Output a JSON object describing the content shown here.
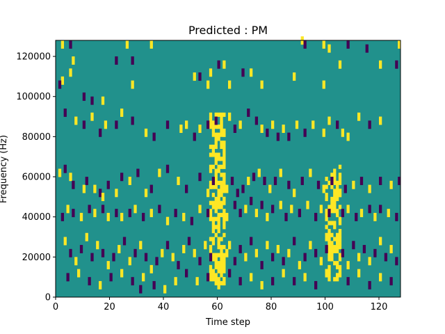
{
  "chart_data": {
    "type": "heatmap",
    "title": "Predicted : PM",
    "xlabel": "Time step",
    "ylabel": "Frequency (Hz)",
    "xlim": [
      0,
      128
    ],
    "ylim": [
      0,
      128000
    ],
    "x_ticks": [
      0,
      20,
      40,
      60,
      80,
      100,
      120
    ],
    "x_tick_labels": [
      "0",
      "20",
      "40",
      "60",
      "80",
      "100",
      "120"
    ],
    "y_ticks": [
      0,
      20000,
      40000,
      60000,
      80000,
      100000,
      120000
    ],
    "y_tick_labels": [
      "0",
      "20000",
      "40000",
      "60000",
      "80000",
      "100000",
      "120000"
    ],
    "colors": {
      "background": "#21918c",
      "high": "#fde725",
      "low": "#440154"
    },
    "values_legend": {
      "1": "high (yellow)",
      "-1": "low (purple)",
      "0": "neutral (teal)"
    },
    "cells": [
      [
        2,
        124000,
        1
      ],
      [
        5,
        124000,
        -1
      ],
      [
        6,
        116000,
        1
      ],
      [
        5,
        110000,
        1
      ],
      [
        2,
        106000,
        1
      ],
      [
        1,
        104000,
        -1
      ],
      [
        10,
        98000,
        -1
      ],
      [
        13,
        96000,
        -1
      ],
      [
        17,
        96000,
        1
      ],
      [
        22,
        116000,
        -1
      ],
      [
        26,
        124000,
        1
      ],
      [
        28,
        116000,
        -1
      ],
      [
        28,
        104000,
        1
      ],
      [
        35,
        124000,
        1
      ],
      [
        51,
        108000,
        1
      ],
      [
        53,
        108000,
        -1
      ],
      [
        56,
        104000,
        1
      ],
      [
        57,
        110000,
        1
      ],
      [
        60,
        114000,
        -1
      ],
      [
        62,
        114000,
        1
      ],
      [
        64,
        104000,
        1
      ],
      [
        69,
        110000,
        -1
      ],
      [
        72,
        110000,
        1
      ],
      [
        76,
        104000,
        1
      ],
      [
        88,
        108000,
        1
      ],
      [
        91,
        126000,
        1
      ],
      [
        92,
        124000,
        -1
      ],
      [
        99,
        124000,
        1
      ],
      [
        99,
        104000,
        1
      ],
      [
        101,
        122000,
        1
      ],
      [
        105,
        114000,
        1
      ],
      [
        108,
        124000,
        -1
      ],
      [
        115,
        122000,
        -1
      ],
      [
        120,
        114000,
        1
      ],
      [
        126,
        114000,
        -1
      ],
      [
        127,
        124000,
        1
      ],
      [
        3,
        90000,
        -1
      ],
      [
        7,
        86000,
        1
      ],
      [
        10,
        84000,
        -1
      ],
      [
        13,
        88000,
        1
      ],
      [
        16,
        80000,
        -1
      ],
      [
        18,
        84000,
        1
      ],
      [
        22,
        84000,
        -1
      ],
      [
        24,
        90000,
        1
      ],
      [
        28,
        86000,
        -1
      ],
      [
        33,
        80000,
        1
      ],
      [
        36,
        78000,
        -1
      ],
      [
        41,
        84000,
        -1
      ],
      [
        46,
        82000,
        1
      ],
      [
        48,
        84000,
        1
      ],
      [
        51,
        78000,
        -1
      ],
      [
        53,
        82000,
        1
      ],
      [
        56,
        84000,
        -1
      ],
      [
        59,
        86000,
        -1
      ],
      [
        61,
        84000,
        1
      ],
      [
        62,
        80000,
        1
      ],
      [
        64,
        88000,
        1
      ],
      [
        66,
        82000,
        -1
      ],
      [
        68,
        84000,
        1
      ],
      [
        71,
        90000,
        -1
      ],
      [
        74,
        86000,
        -1
      ],
      [
        76,
        82000,
        1
      ],
      [
        78,
        80000,
        -1
      ],
      [
        80,
        84000,
        1
      ],
      [
        82,
        78000,
        -1
      ],
      [
        84,
        82000,
        1
      ],
      [
        86,
        78000,
        -1
      ],
      [
        89,
        84000,
        1
      ],
      [
        92,
        80000,
        -1
      ],
      [
        95,
        84000,
        1
      ],
      [
        99,
        80000,
        1
      ],
      [
        101,
        86000,
        1
      ],
      [
        104,
        84000,
        -1
      ],
      [
        106,
        80000,
        1
      ],
      [
        108,
        78000,
        1
      ],
      [
        112,
        88000,
        1
      ],
      [
        116,
        84000,
        -1
      ],
      [
        120,
        86000,
        1
      ],
      [
        1,
        60000,
        1
      ],
      [
        3,
        62000,
        -1
      ],
      [
        5,
        58000,
        1
      ],
      [
        6,
        54000,
        -1
      ],
      [
        10,
        52000,
        1
      ],
      [
        11,
        56000,
        -1
      ],
      [
        14,
        52000,
        1
      ],
      [
        16,
        50000,
        -1
      ],
      [
        17,
        48000,
        1
      ],
      [
        19,
        54000,
        -1
      ],
      [
        22,
        50000,
        1
      ],
      [
        24,
        58000,
        -1
      ],
      [
        27,
        56000,
        1
      ],
      [
        30,
        60000,
        -1
      ],
      [
        33,
        50000,
        1
      ],
      [
        35,
        52000,
        -1
      ],
      [
        38,
        60000,
        1
      ],
      [
        41,
        62000,
        -1
      ],
      [
        45,
        56000,
        1
      ],
      [
        48,
        52000,
        -1
      ],
      [
        53,
        58000,
        -1
      ],
      [
        56,
        50000,
        1
      ],
      [
        57,
        54000,
        1
      ],
      [
        58,
        56000,
        -1
      ],
      [
        62,
        58000,
        1
      ],
      [
        63,
        52000,
        1
      ],
      [
        65,
        56000,
        -1
      ],
      [
        67,
        50000,
        -1
      ],
      [
        69,
        52000,
        -1
      ],
      [
        71,
        56000,
        1
      ],
      [
        73,
        58000,
        -1
      ],
      [
        75,
        60000,
        1
      ],
      [
        77,
        56000,
        -1
      ],
      [
        79,
        52000,
        1
      ],
      [
        81,
        56000,
        -1
      ],
      [
        83,
        60000,
        1
      ],
      [
        86,
        54000,
        -1
      ],
      [
        88,
        50000,
        1
      ],
      [
        91,
        56000,
        -1
      ],
      [
        94,
        60000,
        1
      ],
      [
        97,
        54000,
        -1
      ],
      [
        99,
        52000,
        1
      ],
      [
        102,
        56000,
        -1
      ],
      [
        105,
        50000,
        1
      ],
      [
        107,
        52000,
        -1
      ],
      [
        110,
        54000,
        1
      ],
      [
        113,
        56000,
        -1
      ],
      [
        116,
        52000,
        1
      ],
      [
        120,
        56000,
        -1
      ],
      [
        124,
        54000,
        1
      ],
      [
        127,
        56000,
        -1
      ],
      [
        2,
        38000,
        -1
      ],
      [
        4,
        42000,
        1
      ],
      [
        6,
        40000,
        -1
      ],
      [
        9,
        38000,
        1
      ],
      [
        12,
        42000,
        -1
      ],
      [
        14,
        40000,
        1
      ],
      [
        17,
        42000,
        -1
      ],
      [
        19,
        38000,
        1
      ],
      [
        22,
        40000,
        -1
      ],
      [
        24,
        38000,
        1
      ],
      [
        27,
        40000,
        -1
      ],
      [
        29,
        42000,
        1
      ],
      [
        32,
        38000,
        -1
      ],
      [
        35,
        40000,
        1
      ],
      [
        38,
        42000,
        -1
      ],
      [
        41,
        36000,
        1
      ],
      [
        44,
        40000,
        -1
      ],
      [
        47,
        38000,
        1
      ],
      [
        50,
        36000,
        -1
      ],
      [
        53,
        42000,
        1
      ],
      [
        56,
        40000,
        -1
      ],
      [
        62,
        46000,
        1
      ],
      [
        63,
        38000,
        1
      ],
      [
        66,
        44000,
        -1
      ],
      [
        68,
        40000,
        -1
      ],
      [
        70,
        42000,
        1
      ],
      [
        72,
        46000,
        -1
      ],
      [
        74,
        40000,
        1
      ],
      [
        76,
        44000,
        -1
      ],
      [
        78,
        38000,
        1
      ],
      [
        80,
        42000,
        -1
      ],
      [
        83,
        44000,
        1
      ],
      [
        85,
        38000,
        -1
      ],
      [
        87,
        42000,
        1
      ],
      [
        90,
        40000,
        -1
      ],
      [
        93,
        44000,
        1
      ],
      [
        96,
        38000,
        -1
      ],
      [
        98,
        42000,
        1
      ],
      [
        101,
        40000,
        -1
      ],
      [
        103,
        44000,
        1
      ],
      [
        106,
        40000,
        -1
      ],
      [
        108,
        42000,
        1
      ],
      [
        111,
        38000,
        -1
      ],
      [
        113,
        40000,
        1
      ],
      [
        116,
        42000,
        -1
      ],
      [
        118,
        38000,
        1
      ],
      [
        120,
        42000,
        -1
      ],
      [
        123,
        40000,
        1
      ],
      [
        126,
        38000,
        -1
      ],
      [
        3,
        26000,
        1
      ],
      [
        5,
        20000,
        -1
      ],
      [
        7,
        16000,
        1
      ],
      [
        9,
        22000,
        -1
      ],
      [
        11,
        28000,
        1
      ],
      [
        13,
        18000,
        -1
      ],
      [
        15,
        24000,
        1
      ],
      [
        17,
        20000,
        -1
      ],
      [
        19,
        14000,
        1
      ],
      [
        21,
        18000,
        -1
      ],
      [
        23,
        22000,
        1
      ],
      [
        25,
        26000,
        -1
      ],
      [
        27,
        16000,
        1
      ],
      [
        29,
        20000,
        -1
      ],
      [
        31,
        24000,
        1
      ],
      [
        33,
        18000,
        -1
      ],
      [
        35,
        12000,
        1
      ],
      [
        37,
        16000,
        -1
      ],
      [
        39,
        20000,
        1
      ],
      [
        41,
        24000,
        -1
      ],
      [
        43,
        18000,
        1
      ],
      [
        45,
        14000,
        -1
      ],
      [
        47,
        22000,
        1
      ],
      [
        49,
        26000,
        -1
      ],
      [
        51,
        20000,
        1
      ],
      [
        53,
        16000,
        -1
      ],
      [
        55,
        24000,
        1
      ],
      [
        57,
        18000,
        -1
      ],
      [
        63,
        20000,
        1
      ],
      [
        64,
        24000,
        1
      ],
      [
        66,
        16000,
        -1
      ],
      [
        68,
        22000,
        -1
      ],
      [
        70,
        18000,
        1
      ],
      [
        72,
        26000,
        -1
      ],
      [
        74,
        20000,
        1
      ],
      [
        76,
        14000,
        -1
      ],
      [
        78,
        24000,
        1
      ],
      [
        80,
        18000,
        -1
      ],
      [
        82,
        22000,
        1
      ],
      [
        84,
        16000,
        -1
      ],
      [
        86,
        20000,
        1
      ],
      [
        88,
        26000,
        -1
      ],
      [
        90,
        14000,
        1
      ],
      [
        92,
        18000,
        -1
      ],
      [
        94,
        24000,
        1
      ],
      [
        96,
        20000,
        -1
      ],
      [
        98,
        16000,
        1
      ],
      [
        100,
        22000,
        -1
      ],
      [
        102,
        18000,
        1
      ],
      [
        104,
        26000,
        1
      ],
      [
        106,
        20000,
        -1
      ],
      [
        108,
        14000,
        1
      ],
      [
        110,
        24000,
        -1
      ],
      [
        112,
        18000,
        1
      ],
      [
        114,
        22000,
        -1
      ],
      [
        116,
        16000,
        1
      ],
      [
        118,
        20000,
        -1
      ],
      [
        120,
        26000,
        1
      ],
      [
        122,
        18000,
        -1
      ],
      [
        124,
        22000,
        1
      ],
      [
        126,
        16000,
        -1
      ],
      [
        4,
        8000,
        -1
      ],
      [
        8,
        10000,
        1
      ],
      [
        12,
        6000,
        -1
      ],
      [
        16,
        4000,
        1
      ],
      [
        20,
        8000,
        -1
      ],
      [
        24,
        10000,
        1
      ],
      [
        28,
        6000,
        -1
      ],
      [
        31,
        2000,
        -1
      ],
      [
        32,
        8000,
        1
      ],
      [
        36,
        4000,
        -1
      ],
      [
        40,
        2000,
        1
      ],
      [
        44,
        6000,
        1
      ],
      [
        48,
        10000,
        -1
      ],
      [
        52,
        6000,
        1
      ],
      [
        56,
        8000,
        -1
      ],
      [
        60,
        4000,
        1
      ],
      [
        62,
        6000,
        1
      ],
      [
        64,
        10000,
        -1
      ],
      [
        68,
        6000,
        -1
      ],
      [
        72,
        8000,
        1
      ],
      [
        76,
        4000,
        1
      ],
      [
        80,
        6000,
        -1
      ],
      [
        84,
        10000,
        1
      ],
      [
        88,
        6000,
        -1
      ],
      [
        92,
        8000,
        1
      ],
      [
        96,
        4000,
        -1
      ],
      [
        100,
        10000,
        1
      ],
      [
        104,
        8000,
        1
      ],
      [
        108,
        6000,
        -1
      ],
      [
        112,
        10000,
        1
      ],
      [
        116,
        4000,
        -1
      ],
      [
        120,
        8000,
        1
      ],
      [
        124,
        6000,
        -1
      ]
    ],
    "bands": [
      {
        "x_start": 57,
        "x_end": 63,
        "y_start": 6000,
        "y_end": 92000,
        "value": 1
      },
      {
        "x_start": 100,
        "x_end": 106,
        "y_start": 8000,
        "y_end": 66000,
        "value": 1
      }
    ],
    "grid": false,
    "legend": "none"
  }
}
